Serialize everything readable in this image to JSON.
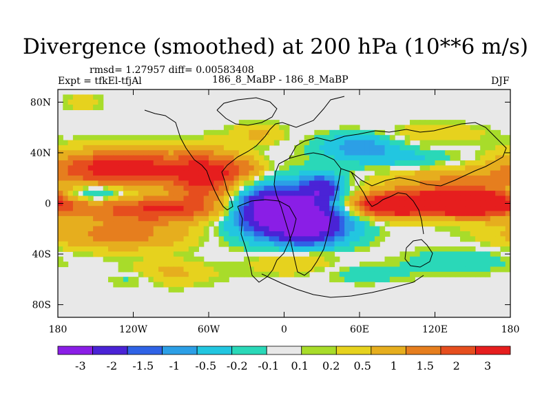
{
  "title": "Divergence (smoothed) at 200 hPa (10**6 m/s)",
  "stats": "rmsd= 1.27957 diff= 0.00583408",
  "expt": "Expt = tfkEl-tfjAl",
  "center_label": "186_8_MaBP - 186_8_MaBP",
  "season": "DJF",
  "colors": {
    "levels": [
      "#8a1ee6",
      "#4a23d6",
      "#2f63e6",
      "#2c9fe6",
      "#22c6e0",
      "#2ad8b8",
      "#e8e8e8",
      "#a8dc2a",
      "#e6d21e",
      "#e6ae1e",
      "#e67e1e",
      "#e64e1e",
      "#e61e1e"
    ],
    "land_outline": "#000000",
    "background": "#e8e8e8"
  },
  "chart_data": {
    "type": "heatmap",
    "title": "Divergence (smoothed) at 200 hPa (10**6 m/s)",
    "x_ticks": [
      "180",
      "120W",
      "60W",
      "0",
      "60E",
      "120E",
      "180"
    ],
    "x_tick_values": [
      -180,
      -120,
      -60,
      0,
      60,
      120,
      180
    ],
    "y_ticks": [
      "80N",
      "40N",
      "0",
      "40S",
      "80S"
    ],
    "y_tick_values": [
      80,
      40,
      0,
      -40,
      -80
    ],
    "xlim": [
      -180,
      180
    ],
    "ylim": [
      -90,
      90
    ],
    "colorbar_labels": [
      "-3",
      "-2",
      "-1.5",
      "-1",
      "-0.5",
      "-0.2",
      "-0.1",
      "0.1",
      "0.2",
      "0.5",
      "1",
      "1.5",
      "2",
      "3"
    ],
    "features": [
      {
        "lon": -10,
        "lat": -5,
        "rx": 28,
        "ry": 16,
        "value": -3.2
      },
      {
        "lon": 20,
        "lat": -15,
        "rx": 30,
        "ry": 18,
        "value": -3.0
      },
      {
        "lon": 30,
        "lat": 12,
        "rx": 16,
        "ry": 10,
        "value": -2.2
      },
      {
        "lon": 0,
        "lat": -8,
        "rx": 55,
        "ry": 28,
        "value": -1.2
      },
      {
        "lon": -130,
        "lat": 28,
        "rx": 55,
        "ry": 14,
        "value": 2.5
      },
      {
        "lon": -60,
        "lat": 20,
        "rx": 30,
        "ry": 20,
        "value": 2.2
      },
      {
        "lon": -100,
        "lat": -5,
        "rx": 60,
        "ry": 10,
        "value": 2.0
      },
      {
        "lon": 150,
        "lat": 0,
        "rx": 35,
        "ry": 10,
        "value": 3.2
      },
      {
        "lon": 85,
        "lat": -2,
        "rx": 35,
        "ry": 9,
        "value": 2.5
      },
      {
        "lon": 110,
        "lat": 3,
        "rx": 70,
        "ry": 12,
        "value": 1.2
      },
      {
        "lon": -130,
        "lat": -25,
        "rx": 60,
        "ry": 12,
        "value": 1.2
      },
      {
        "lon": 130,
        "lat": 20,
        "rx": 50,
        "ry": 10,
        "value": 0.8
      },
      {
        "lon": 10,
        "lat": -45,
        "rx": 40,
        "ry": 12,
        "value": 0.8
      },
      {
        "lon": -150,
        "lat": 8,
        "rx": 25,
        "ry": 6,
        "value": -1.2
      },
      {
        "lon": -30,
        "lat": 28,
        "rx": 20,
        "ry": 8,
        "value": 0.7
      },
      {
        "lon": 60,
        "lat": 45,
        "rx": 30,
        "ry": 10,
        "value": -1.3
      },
      {
        "lon": 100,
        "lat": 35,
        "rx": 45,
        "ry": 8,
        "value": -0.6
      },
      {
        "lon": -20,
        "lat": 55,
        "rx": 20,
        "ry": 8,
        "value": 0.6
      },
      {
        "lon": 120,
        "lat": 55,
        "rx": 40,
        "ry": 8,
        "value": 0.5
      },
      {
        "lon": 140,
        "lat": -45,
        "rx": 40,
        "ry": 10,
        "value": -0.5
      },
      {
        "lon": -90,
        "lat": -55,
        "rx": 35,
        "ry": 10,
        "value": 0.6
      },
      {
        "lon": 60,
        "lat": -55,
        "rx": 40,
        "ry": 8,
        "value": -0.4
      },
      {
        "lon": -160,
        "lat": 80,
        "rx": 15,
        "ry": 6,
        "value": 0.4
      },
      {
        "lon": -120,
        "lat": -60,
        "rx": 20,
        "ry": 6,
        "value": -0.4
      }
    ]
  }
}
